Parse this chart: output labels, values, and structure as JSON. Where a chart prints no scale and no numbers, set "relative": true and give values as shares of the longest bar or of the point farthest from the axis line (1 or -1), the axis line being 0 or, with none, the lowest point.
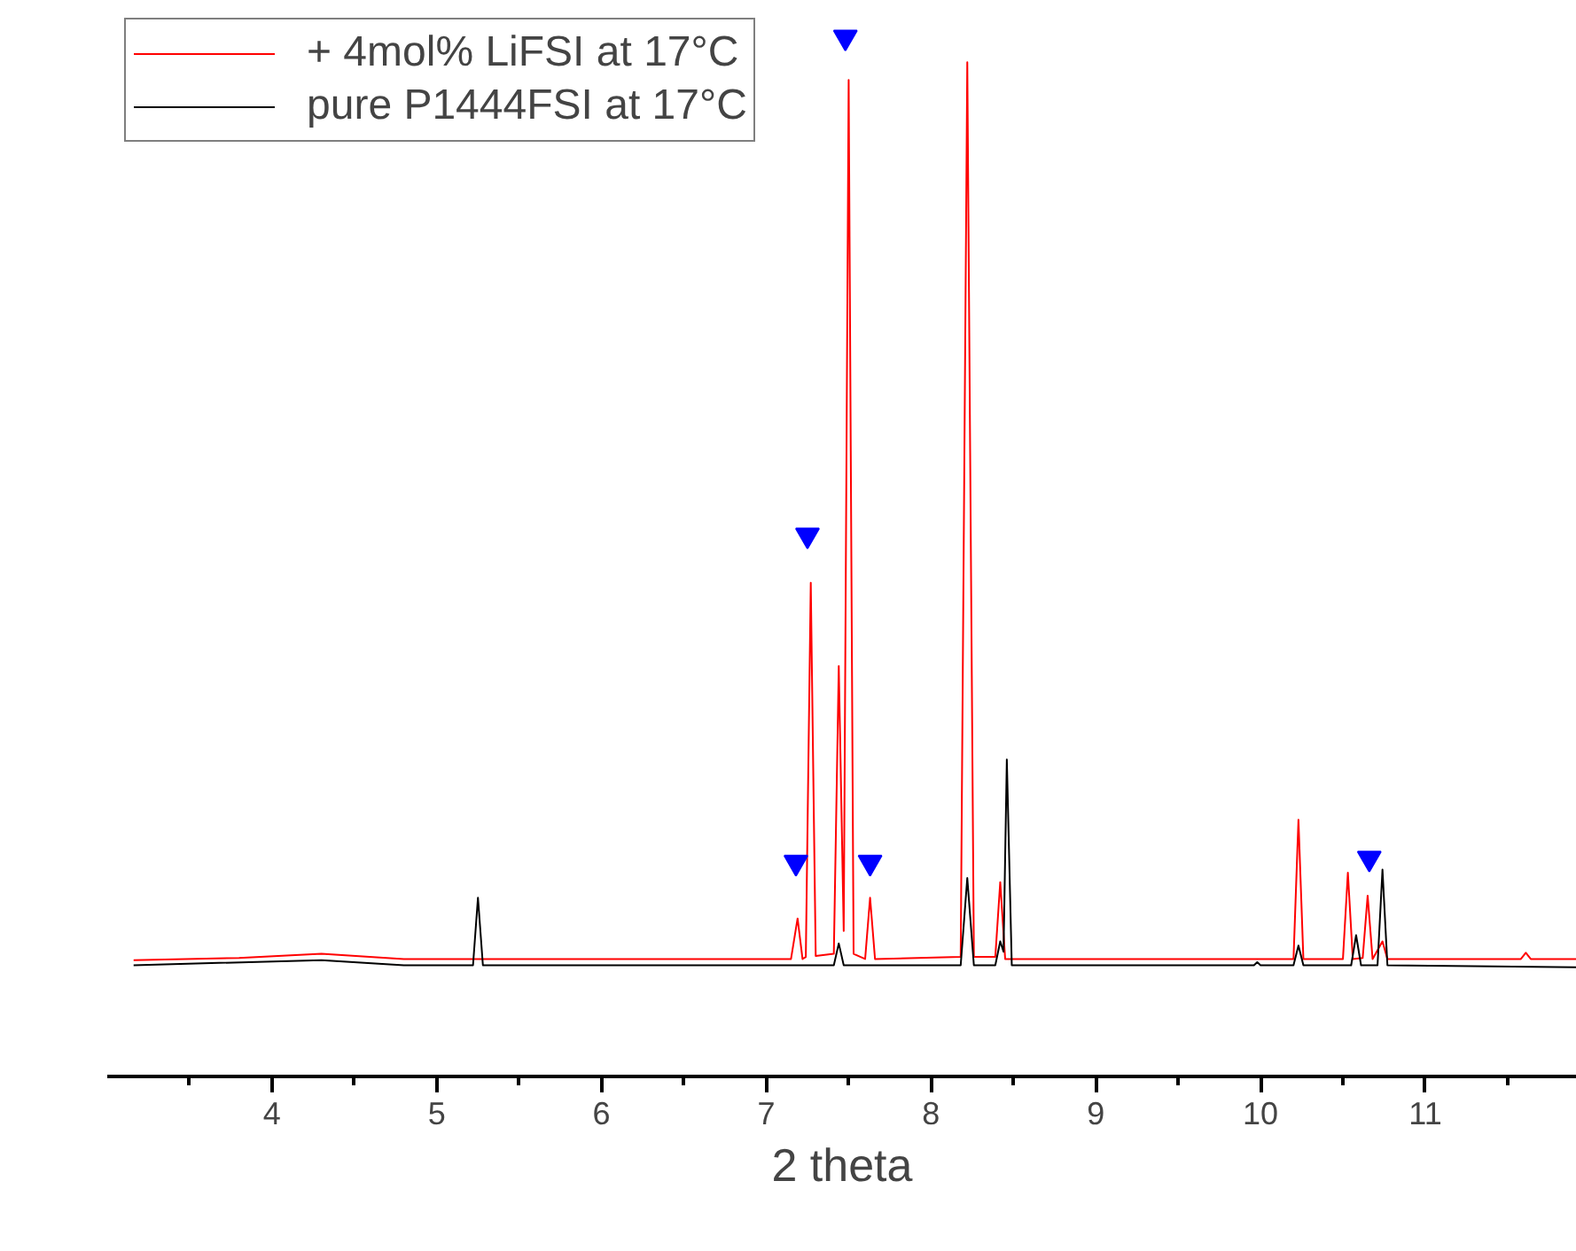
{
  "chart_data": {
    "type": "line",
    "relative": true,
    "xlabel": "2 theta",
    "xlim": [
      3.0,
      11.92
    ],
    "xticks": [
      4,
      5,
      6,
      7,
      8,
      9,
      10,
      11
    ],
    "tick_labels": "x",
    "legend": "top left",
    "grid": false,
    "marker": "none",
    "line_style": "solid",
    "series": [
      {
        "name": "+ 4mol% LiFSI at 17°C",
        "color": "#ff0000",
        "x": [
          3.16,
          3.8,
          4.3,
          4.8,
          5.2,
          7.15,
          7.19,
          7.22,
          7.24,
          7.27,
          7.3,
          7.41,
          7.44,
          7.47,
          7.5,
          7.53,
          7.6,
          7.63,
          7.66,
          8.18,
          8.22,
          8.26,
          8.39,
          8.42,
          8.45,
          10.2,
          10.23,
          10.26,
          10.5,
          10.53,
          10.56,
          10.62,
          10.65,
          10.68,
          10.74,
          10.77,
          11.58,
          11.61,
          11.64,
          11.92
        ],
        "values": [
          0.112,
          0.114,
          0.118,
          0.113,
          0.113,
          0.113,
          0.152,
          0.113,
          0.115,
          0.475,
          0.116,
          0.118,
          0.395,
          0.14,
          0.959,
          0.118,
          0.113,
          0.172,
          0.113,
          0.115,
          0.976,
          0.115,
          0.115,
          0.187,
          0.113,
          0.113,
          0.247,
          0.113,
          0.113,
          0.196,
          0.113,
          0.114,
          0.174,
          0.113,
          0.13,
          0.113,
          0.113,
          0.119,
          0.113,
          0.113
        ]
      },
      {
        "name": "pure P1444FSI at 17°C",
        "color": "#000000",
        "x": [
          3.16,
          4.3,
          4.8,
          5.22,
          5.25,
          5.28,
          7.41,
          7.44,
          7.47,
          8.18,
          8.22,
          8.26,
          8.39,
          8.42,
          8.44,
          8.46,
          8.49,
          9.96,
          9.98,
          10.0,
          10.2,
          10.23,
          10.26,
          10.55,
          10.58,
          10.61,
          10.71,
          10.74,
          10.77,
          11.92
        ],
        "values": [
          0.107,
          0.112,
          0.107,
          0.107,
          0.172,
          0.107,
          0.107,
          0.128,
          0.107,
          0.107,
          0.191,
          0.107,
          0.107,
          0.13,
          0.12,
          0.305,
          0.107,
          0.107,
          0.11,
          0.107,
          0.107,
          0.126,
          0.107,
          0.107,
          0.136,
          0.107,
          0.107,
          0.199,
          0.107,
          0.105
        ]
      },
      {
        "type": "scatter",
        "marker": "triangle",
        "color": "#0000ff",
        "x": [
          7.18,
          7.25,
          7.48,
          7.63,
          10.66
        ],
        "values": [
          0.206,
          0.521,
          1.0,
          0.206,
          0.21
        ]
      }
    ]
  }
}
